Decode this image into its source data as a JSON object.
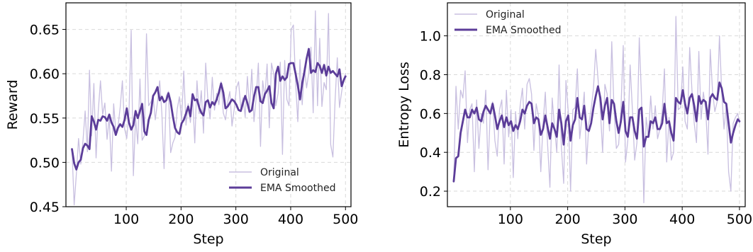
{
  "chart_data": [
    {
      "type": "line",
      "xlabel": "Step",
      "ylabel": "Reward",
      "xlim": [
        -10,
        510
      ],
      "ylim": [
        0.45,
        0.68
      ],
      "xticks": [
        100,
        200,
        300,
        400,
        500
      ],
      "yticks": [
        0.45,
        0.5,
        0.55,
        0.6,
        0.65
      ],
      "ytick_labels": [
        "0.45",
        "0.50",
        "0.55",
        "0.60",
        "0.65"
      ],
      "grid": true,
      "legend_position": "lower-right",
      "series": [
        {
          "name": "Original",
          "color": "#c8bfe0",
          "x": [
            1,
            5,
            9,
            13,
            17,
            21,
            25,
            29,
            33,
            37,
            41,
            45,
            49,
            53,
            57,
            61,
            65,
            69,
            73,
            77,
            81,
            85,
            89,
            93,
            97,
            101,
            105,
            109,
            113,
            117,
            121,
            125,
            129,
            133,
            137,
            141,
            145,
            149,
            153,
            157,
            161,
            165,
            169,
            173,
            177,
            181,
            185,
            189,
            193,
            197,
            201,
            205,
            209,
            213,
            217,
            221,
            225,
            229,
            233,
            237,
            241,
            245,
            249,
            253,
            257,
            261,
            265,
            269,
            273,
            277,
            281,
            285,
            289,
            293,
            297,
            301,
            305,
            309,
            313,
            317,
            321,
            325,
            329,
            333,
            337,
            341,
            345,
            349,
            353,
            357,
            361,
            365,
            369,
            373,
            377,
            381,
            385,
            389,
            393,
            397,
            401,
            405,
            409,
            413,
            417,
            421,
            425,
            429,
            433,
            437,
            441,
            445,
            449,
            453,
            457,
            461,
            465,
            469,
            473,
            477,
            481,
            485,
            489,
            493,
            497,
            500
          ],
          "values": [
            0.515,
            0.452,
            0.487,
            0.527,
            0.498,
            0.524,
            0.558,
            0.512,
            0.604,
            0.53,
            0.589,
            0.505,
            0.558,
            0.592,
            0.554,
            0.567,
            0.526,
            0.551,
            0.49,
            0.566,
            0.535,
            0.54,
            0.562,
            0.592,
            0.538,
            0.527,
            0.556,
            0.649,
            0.485,
            0.55,
            0.521,
            0.594,
            0.525,
            0.53,
            0.645,
            0.564,
            0.568,
            0.575,
            0.548,
            0.568,
            0.592,
            0.555,
            0.493,
            0.575,
            0.58,
            0.511,
            0.522,
            0.528,
            0.56,
            0.574,
            0.547,
            0.603,
            0.542,
            0.566,
            0.545,
            0.574,
            0.522,
            0.592,
            0.555,
            0.581,
            0.533,
            0.612,
            0.57,
            0.549,
            0.596,
            0.559,
            0.578,
            0.565,
            0.591,
            0.556,
            0.548,
            0.568,
            0.58,
            0.541,
            0.56,
            0.584,
            0.591,
            0.561,
            0.573,
            0.551,
            0.597,
            0.56,
            0.605,
            0.546,
            0.573,
            0.612,
            0.518,
            0.592,
            0.573,
            0.611,
            0.539,
            0.612,
            0.6,
            0.564,
            0.578,
            0.613,
            0.509,
            0.615,
            0.571,
            0.564,
            0.65,
            0.655,
            0.59,
            0.546,
            0.616,
            0.565,
            0.607,
            0.584,
            0.601,
            0.63,
            0.556,
            0.671,
            0.564,
            0.64,
            0.563,
            0.59,
            0.582,
            0.668,
            0.52,
            0.506,
            0.57,
            0.618,
            0.562,
            0.58,
            0.594,
            0.6
          ]
        },
        {
          "name": "EMA Smoothed",
          "color": "#5c3d99",
          "x": [
            1,
            5,
            9,
            13,
            17,
            21,
            25,
            29,
            33,
            37,
            41,
            45,
            49,
            53,
            57,
            61,
            65,
            69,
            73,
            77,
            81,
            85,
            89,
            93,
            97,
            101,
            105,
            109,
            113,
            117,
            121,
            125,
            129,
            133,
            137,
            141,
            145,
            149,
            153,
            157,
            161,
            165,
            169,
            173,
            177,
            181,
            185,
            189,
            193,
            197,
            201,
            205,
            209,
            213,
            217,
            221,
            225,
            229,
            233,
            237,
            241,
            245,
            249,
            253,
            257,
            261,
            265,
            269,
            273,
            277,
            281,
            285,
            289,
            293,
            297,
            301,
            305,
            309,
            313,
            317,
            321,
            325,
            329,
            333,
            337,
            341,
            345,
            349,
            353,
            357,
            361,
            365,
            369,
            373,
            377,
            381,
            385,
            389,
            393,
            397,
            401,
            405,
            409,
            413,
            417,
            421,
            425,
            429,
            433,
            437,
            441,
            445,
            449,
            453,
            457,
            461,
            465,
            469,
            473,
            477,
            481,
            485,
            489,
            493,
            497,
            500
          ],
          "values": [
            0.515,
            0.499,
            0.492,
            0.5,
            0.503,
            0.516,
            0.521,
            0.519,
            0.515,
            0.552,
            0.546,
            0.537,
            0.548,
            0.547,
            0.552,
            0.551,
            0.547,
            0.554,
            0.545,
            0.54,
            0.531,
            0.539,
            0.543,
            0.54,
            0.548,
            0.561,
            0.545,
            0.537,
            0.542,
            0.558,
            0.55,
            0.558,
            0.566,
            0.535,
            0.531,
            0.548,
            0.556,
            0.575,
            0.579,
            0.585,
            0.57,
            0.574,
            0.568,
            0.57,
            0.578,
            0.568,
            0.552,
            0.539,
            0.534,
            0.532,
            0.544,
            0.548,
            0.555,
            0.563,
            0.552,
            0.577,
            0.57,
            0.571,
            0.562,
            0.556,
            0.553,
            0.568,
            0.57,
            0.562,
            0.568,
            0.565,
            0.571,
            0.579,
            0.589,
            0.579,
            0.561,
            0.563,
            0.567,
            0.571,
            0.569,
            0.565,
            0.559,
            0.558,
            0.567,
            0.575,
            0.567,
            0.557,
            0.559,
            0.574,
            0.585,
            0.585,
            0.569,
            0.567,
            0.577,
            0.581,
            0.586,
            0.567,
            0.561,
            0.6,
            0.608,
            0.592,
            0.597,
            0.593,
            0.596,
            0.611,
            0.612,
            0.612,
            0.6,
            0.587,
            0.571,
            0.589,
            0.602,
            0.617,
            0.628,
            0.601,
            0.604,
            0.602,
            0.612,
            0.609,
            0.601,
            0.61,
            0.598,
            0.608,
            0.601,
            0.603,
            0.6,
            0.597,
            0.605,
            0.586,
            0.593,
            0.597
          ]
        }
      ]
    },
    {
      "type": "line",
      "xlabel": "Step",
      "ylabel": "Entropy Loss",
      "xlim": [
        -10,
        510
      ],
      "ylim": [
        0.12,
        1.17
      ],
      "xticks": [
        100,
        200,
        300,
        400,
        500
      ],
      "yticks": [
        0.2,
        0.4,
        0.6,
        0.8,
        1.0
      ],
      "ytick_labels": [
        "0.2",
        "0.4",
        "0.6",
        "0.8",
        "1.0"
      ],
      "grid": true,
      "legend_position": "top-left",
      "series": [
        {
          "name": "Original",
          "color": "#c8bfe0",
          "x": [
            1,
            5,
            9,
            13,
            17,
            21,
            25,
            29,
            33,
            37,
            41,
            45,
            49,
            53,
            57,
            61,
            65,
            69,
            73,
            77,
            81,
            85,
            89,
            93,
            97,
            101,
            105,
            109,
            113,
            117,
            121,
            125,
            129,
            133,
            137,
            141,
            145,
            149,
            153,
            157,
            161,
            165,
            169,
            173,
            177,
            181,
            185,
            189,
            193,
            197,
            201,
            205,
            209,
            213,
            217,
            221,
            225,
            229,
            233,
            237,
            241,
            245,
            249,
            253,
            257,
            261,
            265,
            269,
            273,
            277,
            281,
            285,
            289,
            293,
            297,
            301,
            305,
            309,
            313,
            317,
            321,
            325,
            329,
            333,
            337,
            341,
            345,
            349,
            353,
            357,
            361,
            365,
            369,
            373,
            377,
            381,
            385,
            389,
            393,
            397,
            401,
            405,
            409,
            413,
            417,
            421,
            425,
            429,
            433,
            437,
            441,
            445,
            449,
            453,
            457,
            461,
            465,
            469,
            473,
            477,
            481,
            485,
            489,
            493,
            497,
            500
          ],
          "values": [
            0.25,
            0.74,
            0.52,
            0.72,
            0.68,
            0.82,
            0.45,
            0.62,
            0.65,
            0.3,
            0.67,
            0.42,
            0.6,
            0.55,
            0.72,
            0.31,
            0.62,
            0.66,
            0.46,
            0.38,
            0.62,
            0.67,
            0.34,
            0.72,
            0.48,
            0.62,
            0.27,
            0.61,
            0.47,
            0.64,
            0.73,
            0.52,
            0.75,
            0.78,
            0.7,
            0.41,
            0.65,
            0.59,
            0.3,
            0.55,
            0.71,
            0.44,
            0.22,
            0.68,
            0.53,
            0.4,
            0.85,
            0.43,
            0.24,
            0.77,
            0.61,
            0.2,
            0.62,
            0.63,
            0.83,
            0.47,
            0.58,
            0.71,
            0.34,
            0.55,
            0.62,
            0.73,
            0.93,
            0.78,
            0.62,
            0.4,
            0.75,
            0.7,
            0.51,
            0.97,
            0.62,
            0.42,
            0.44,
            0.62,
            0.95,
            0.35,
            0.46,
            0.85,
            0.62,
            0.36,
            0.45,
            0.99,
            0.68,
            0.14,
            0.58,
            0.48,
            0.69,
            0.52,
            0.64,
            0.47,
            0.52,
            0.61,
            0.83,
            0.35,
            0.58,
            0.36,
            0.4,
            1.1,
            0.62,
            0.63,
            0.84,
            0.56,
            0.52,
            0.94,
            0.72,
            0.55,
            0.45,
            0.92,
            0.57,
            0.71,
            0.62,
            0.39,
            0.93,
            0.71,
            0.61,
            0.66,
            1.0,
            0.71,
            0.52,
            0.64,
            0.3,
            0.2,
            0.55,
            0.58,
            0.6,
            0.55
          ]
        },
        {
          "name": "EMA Smoothed",
          "color": "#5c3d99",
          "x": [
            1,
            5,
            9,
            13,
            17,
            21,
            25,
            29,
            33,
            37,
            41,
            45,
            49,
            53,
            57,
            61,
            65,
            69,
            73,
            77,
            81,
            85,
            89,
            93,
            97,
            101,
            105,
            109,
            113,
            117,
            121,
            125,
            129,
            133,
            137,
            141,
            145,
            149,
            153,
            157,
            161,
            165,
            169,
            173,
            177,
            181,
            185,
            189,
            193,
            197,
            201,
            205,
            209,
            213,
            217,
            221,
            225,
            229,
            233,
            237,
            241,
            245,
            249,
            253,
            257,
            261,
            265,
            269,
            273,
            277,
            281,
            285,
            289,
            293,
            297,
            301,
            305,
            309,
            313,
            317,
            321,
            325,
            329,
            333,
            337,
            341,
            345,
            349,
            353,
            357,
            361,
            365,
            369,
            373,
            377,
            381,
            385,
            389,
            393,
            397,
            401,
            405,
            409,
            413,
            417,
            421,
            425,
            429,
            433,
            437,
            441,
            445,
            449,
            453,
            457,
            461,
            465,
            469,
            473,
            477,
            481,
            485,
            489,
            493,
            497,
            500
          ],
          "values": [
            0.25,
            0.37,
            0.38,
            0.5,
            0.56,
            0.62,
            0.58,
            0.58,
            0.62,
            0.6,
            0.63,
            0.57,
            0.56,
            0.61,
            0.64,
            0.62,
            0.6,
            0.65,
            0.59,
            0.52,
            0.56,
            0.59,
            0.53,
            0.58,
            0.54,
            0.56,
            0.51,
            0.54,
            0.52,
            0.56,
            0.62,
            0.6,
            0.64,
            0.66,
            0.65,
            0.55,
            0.58,
            0.57,
            0.49,
            0.52,
            0.59,
            0.53,
            0.47,
            0.55,
            0.52,
            0.48,
            0.62,
            0.55,
            0.44,
            0.56,
            0.59,
            0.46,
            0.54,
            0.57,
            0.68,
            0.58,
            0.57,
            0.64,
            0.52,
            0.51,
            0.55,
            0.63,
            0.69,
            0.74,
            0.68,
            0.57,
            0.64,
            0.68,
            0.55,
            0.67,
            0.65,
            0.56,
            0.5,
            0.56,
            0.66,
            0.51,
            0.48,
            0.58,
            0.58,
            0.51,
            0.47,
            0.62,
            0.63,
            0.43,
            0.48,
            0.48,
            0.56,
            0.55,
            0.58,
            0.52,
            0.52,
            0.55,
            0.65,
            0.55,
            0.56,
            0.5,
            0.46,
            0.68,
            0.66,
            0.65,
            0.72,
            0.65,
            0.6,
            0.68,
            0.7,
            0.64,
            0.56,
            0.69,
            0.65,
            0.67,
            0.66,
            0.57,
            0.68,
            0.7,
            0.68,
            0.67,
            0.76,
            0.73,
            0.66,
            0.65,
            0.55,
            0.45,
            0.5,
            0.54,
            0.57,
            0.56
          ]
        }
      ]
    }
  ]
}
